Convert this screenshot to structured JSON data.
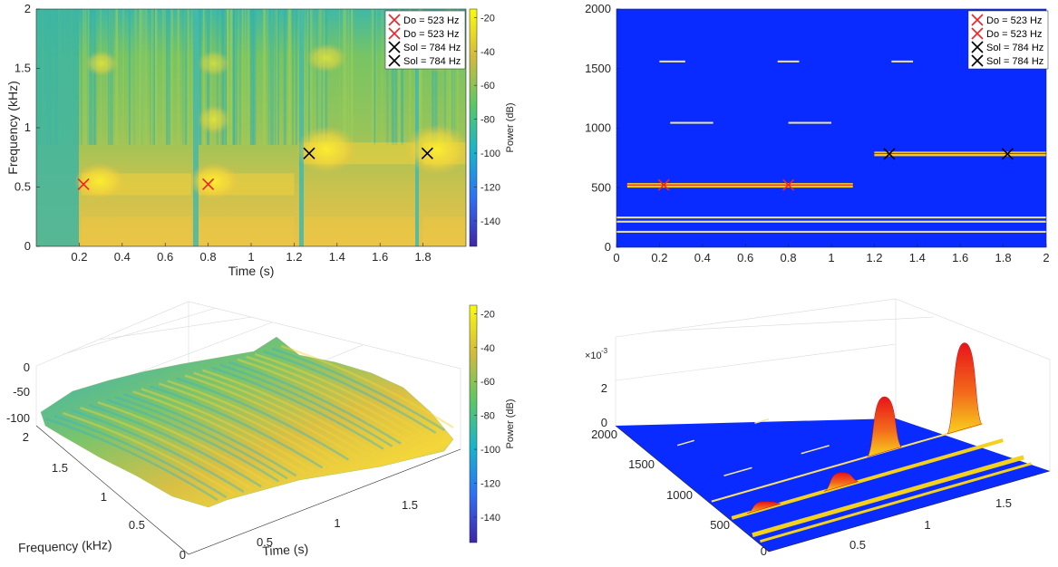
{
  "chart_data": [
    {
      "id": "tl",
      "type": "heatmap",
      "xlabel": "Time (s)",
      "ylabel": "Frequency (kHz)",
      "xlim": [
        0,
        2
      ],
      "ylim": [
        0,
        2
      ],
      "xticks": [
        "0.2",
        "0.4",
        "0.6",
        "0.8",
        "1",
        "1.2",
        "1.4",
        "1.6",
        "1.8"
      ],
      "yticks": [
        "0",
        "0.5",
        "1",
        "1.5",
        "2"
      ],
      "colorbar": {
        "label": "Power (dB)",
        "ticks": [
          "-20",
          "-40",
          "-60",
          "-80",
          "-100",
          "-120",
          "-140"
        ],
        "range": [
          -155,
          -15
        ]
      },
      "markers": [
        {
          "x": 0.22,
          "y": 0.523,
          "color": "#e8262a"
        },
        {
          "x": 0.8,
          "y": 0.523,
          "color": "#e8262a"
        },
        {
          "x": 1.27,
          "y": 0.784,
          "color": "#000000"
        },
        {
          "x": 1.82,
          "y": 0.784,
          "color": "#000000"
        }
      ],
      "legend": {
        "placement": "top-right",
        "entries": [
          {
            "label": "Do = 523 Hz",
            "color": "#e8262a"
          },
          {
            "label": "Do = 523 Hz",
            "color": "#e8262a"
          },
          {
            "label": "Sol = 784 Hz",
            "color": "#000000"
          },
          {
            "label": "Sol = 784 Hz",
            "color": "#000000"
          }
        ]
      },
      "note_segments": [
        {
          "start": 0.21,
          "end": 0.72,
          "freq_khz": 0.523
        },
        {
          "start": 0.75,
          "end": 1.2,
          "freq_khz": 0.523
        },
        {
          "start": 1.24,
          "end": 1.77,
          "freq_khz": 0.784
        },
        {
          "start": 1.8,
          "end": 2.0,
          "freq_khz": 0.784
        }
      ]
    },
    {
      "id": "tr",
      "type": "heatmap",
      "xlim": [
        0,
        2
      ],
      "ylim": [
        0,
        2000
      ],
      "xticks": [
        "0",
        "0.2",
        "0.4",
        "0.6",
        "0.8",
        "1",
        "1.2",
        "1.4",
        "1.6",
        "1.8",
        "2"
      ],
      "yticks": [
        "0",
        "500",
        "1000",
        "1500",
        "2000"
      ],
      "markers": [
        {
          "x": 0.22,
          "y": 523,
          "color": "#e8262a"
        },
        {
          "x": 0.8,
          "y": 523,
          "color": "#e8262a"
        },
        {
          "x": 1.27,
          "y": 784,
          "color": "#000000"
        },
        {
          "x": 1.82,
          "y": 784,
          "color": "#000000"
        }
      ],
      "legend": {
        "placement": "top-right",
        "entries": [
          {
            "label": "Do = 523 Hz",
            "color": "#e8262a"
          },
          {
            "label": "Do = 523 Hz",
            "color": "#e8262a"
          },
          {
            "label": "Sol = 784 Hz",
            "color": "#000000"
          },
          {
            "label": "Sol = 784 Hz",
            "color": "#000000"
          }
        ]
      },
      "ridges": [
        {
          "t0": 0.05,
          "t1": 1.1,
          "f": 520
        },
        {
          "t0": 1.2,
          "t1": 2.0,
          "f": 784
        },
        {
          "t0": 0.0,
          "t1": 2.0,
          "f": 250
        },
        {
          "t0": 0.0,
          "t1": 2.0,
          "f": 130
        },
        {
          "t0": 0.0,
          "t1": 2.0,
          "f": 215
        },
        {
          "t0": 0.2,
          "t1": 0.32,
          "f": 1560
        },
        {
          "t0": 0.75,
          "t1": 0.85,
          "f": 1560
        },
        {
          "t0": 1.28,
          "t1": 1.38,
          "f": 1560
        },
        {
          "t0": 0.25,
          "t1": 0.45,
          "f": 1045
        },
        {
          "t0": 0.8,
          "t1": 1.0,
          "f": 1045
        }
      ]
    },
    {
      "id": "bl",
      "type": "surface",
      "xlabel": "Time (s)",
      "ylabel": "Frequency (kHz)",
      "xticks": [
        "0.5",
        "1",
        "1.5"
      ],
      "yticks": [
        "0",
        "0.5",
        "1",
        "1.5",
        "2"
      ],
      "zticks": [
        "0",
        "-50",
        "-100"
      ],
      "colorbar": {
        "label": "Power (dB)",
        "ticks": [
          "-20",
          "-40",
          "-60",
          "-80",
          "-100",
          "-120",
          "-140"
        ],
        "range": [
          -155,
          -15
        ]
      }
    },
    {
      "id": "br",
      "type": "surface",
      "xticks": [
        "0.5",
        "1",
        "1.5"
      ],
      "yticks": [
        "0",
        "500",
        "1000",
        "1500",
        "2000"
      ],
      "zticks": [
        "0",
        "2"
      ],
      "zexponent_base": "×10",
      "zexponent_power": "-3",
      "peaks": [
        {
          "t": 1.25,
          "f": 784,
          "height": 0.0016
        },
        {
          "t": 1.82,
          "f": 784,
          "height": 0.0025
        },
        {
          "t": 0.8,
          "f": 523,
          "height": 0.0004
        },
        {
          "t": 0.25,
          "f": 523,
          "height": 0.0002
        }
      ]
    }
  ]
}
